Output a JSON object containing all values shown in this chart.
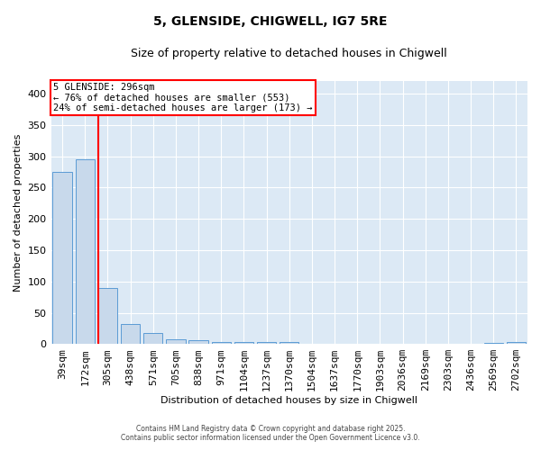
{
  "title": "5, GLENSIDE, CHIGWELL, IG7 5RE",
  "subtitle": "Size of property relative to detached houses in Chigwell",
  "xlabel": "Distribution of detached houses by size in Chigwell",
  "ylabel": "Number of detached properties",
  "bar_color": "#c8d9eb",
  "bar_edge_color": "#5b9bd5",
  "background_color": "#dce9f5",
  "categories": [
    "39sqm",
    "172sqm",
    "305sqm",
    "438sqm",
    "571sqm",
    "705sqm",
    "838sqm",
    "971sqm",
    "1104sqm",
    "1237sqm",
    "1370sqm",
    "1504sqm",
    "1637sqm",
    "1770sqm",
    "1903sqm",
    "2036sqm",
    "2169sqm",
    "2303sqm",
    "2436sqm",
    "2569sqm",
    "2702sqm"
  ],
  "values": [
    275,
    295,
    90,
    32,
    18,
    8,
    6,
    3,
    3,
    3,
    4,
    0,
    0,
    0,
    0,
    0,
    0,
    0,
    0,
    2,
    3
  ],
  "ylim": [
    0,
    420
  ],
  "yticks": [
    0,
    50,
    100,
    150,
    200,
    250,
    300,
    350,
    400
  ],
  "red_line_index": 2,
  "annotation_text": "5 GLENSIDE: 296sqm\n← 76% of detached houses are smaller (553)\n24% of semi-detached houses are larger (173) →",
  "footer_text1": "Contains HM Land Registry data © Crown copyright and database right 2025.",
  "footer_text2": "Contains public sector information licensed under the Open Government Licence v3.0."
}
